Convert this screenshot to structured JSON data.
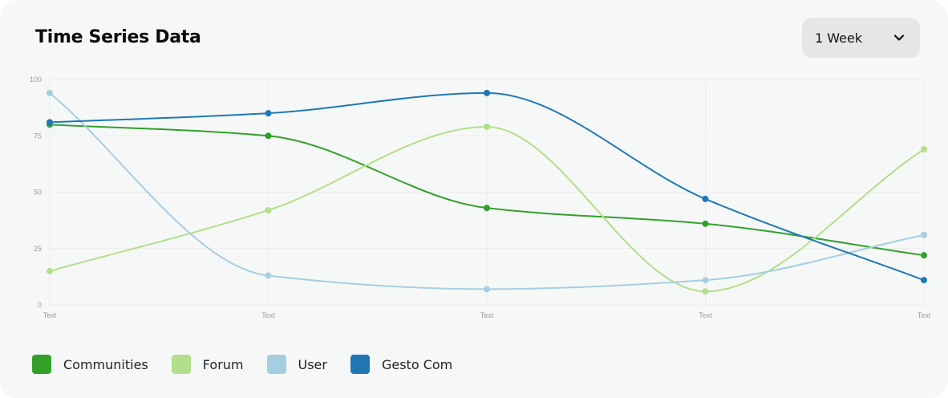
{
  "header": {
    "title": "Time Series Data"
  },
  "range_select": {
    "value": "1 Week",
    "icon": "chevron-down-icon"
  },
  "chart_data": {
    "type": "line",
    "title": "",
    "xlabel": "",
    "ylabel": "",
    "x": [
      "Text",
      "Text",
      "Text",
      "Text",
      "Text"
    ],
    "ylim": [
      0,
      100
    ],
    "yticks": [
      0,
      25,
      50,
      75,
      100
    ],
    "grid": true,
    "smooth": true,
    "legend_position": "bottom-left",
    "series": [
      {
        "name": "Communities",
        "color": "#33a02c",
        "values": [
          80,
          75,
          43,
          36,
          22
        ]
      },
      {
        "name": "Forum",
        "color": "#b2df8a",
        "values": [
          15,
          42,
          79,
          6,
          69
        ]
      },
      {
        "name": "User",
        "color": "#a6cee3",
        "values": [
          94,
          13,
          7,
          11,
          31
        ]
      },
      {
        "name": "Gesto Com",
        "color": "#1f78b4",
        "values": [
          81,
          85,
          94,
          47,
          11
        ]
      }
    ]
  }
}
